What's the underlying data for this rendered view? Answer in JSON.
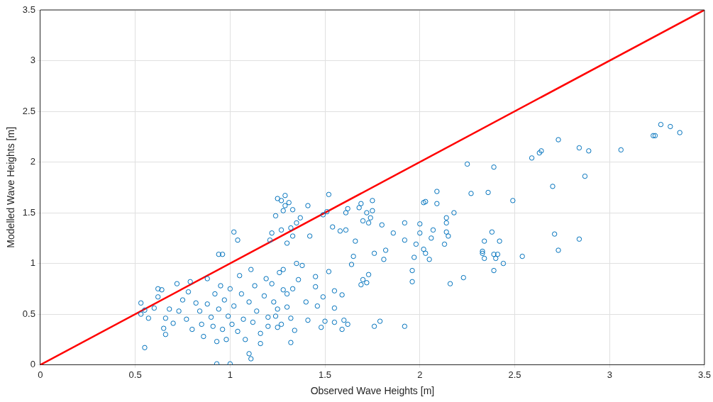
{
  "chart_data": {
    "type": "scatter",
    "xlabel": "Observed Wave Heights [m]",
    "ylabel": "Modelled Wave Heights [m]",
    "xlim": [
      0,
      3.5
    ],
    "ylim": [
      0,
      3.5
    ],
    "xticks": [
      0,
      0.5,
      1,
      1.5,
      2,
      2.5,
      3,
      3.5
    ],
    "yticks": [
      0,
      0.5,
      1,
      1.5,
      2,
      2.5,
      3,
      3.5
    ],
    "grid": true,
    "legend": false,
    "series": [
      {
        "type": "scatter",
        "color": "#0072bd",
        "marker": "circle",
        "x": [
          3.37,
          3.32,
          3.27,
          3.23,
          3.24,
          3.06,
          2.89,
          2.84,
          2.73,
          2.64,
          2.63,
          2.59,
          2.87,
          2.7,
          2.49,
          2.71,
          2.73,
          2.84,
          2.54,
          2.39,
          2.27,
          2.25,
          2.36,
          2.38,
          2.34,
          2.33,
          2.33,
          2.34,
          2.39,
          2.41,
          2.42,
          2.44,
          2.4,
          2.39,
          2.23,
          2.16,
          2.18,
          2.14,
          2.14,
          2.14,
          2.15,
          2.13,
          2.09,
          2.09,
          2.07,
          2.06,
          2.05,
          2.03,
          2.02,
          2,
          2,
          2.02,
          2.03,
          1.98,
          1.97,
          1.96,
          1.96,
          1.92,
          1.92,
          1.92,
          1.86,
          1.82,
          1.81,
          1.8,
          1.79,
          1.76,
          1.76,
          1.75,
          1.75,
          1.74,
          1.73,
          1.72,
          1.73,
          1.72,
          1.7,
          1.69,
          1.7,
          1.68,
          1.69,
          1.66,
          1.65,
          1.64,
          1.62,
          1.61,
          1.61,
          1.58,
          1.59,
          1.6,
          1.59,
          1.62,
          1.55,
          1.55,
          1.55,
          1.52,
          1.51,
          1.49,
          1.54,
          1.52,
          1.49,
          1.5,
          1.48,
          1.46,
          1.45,
          1.45,
          1.42,
          1.41,
          1.41,
          1.4,
          1.37,
          1.35,
          1.33,
          1.32,
          1.31,
          1.29,
          1.29,
          1.28,
          1.27,
          1.25,
          1.24,
          1.22,
          1.21,
          1.27,
          1.3,
          1.33,
          1.35,
          1.38,
          1.36,
          1.33,
          1.28,
          1.3,
          1.25,
          1.27,
          1.32,
          1.25,
          1.2,
          1.16,
          1.11,
          1.1,
          1,
          0.93,
          0.55,
          1.04,
          1.02,
          0.96,
          0.94,
          0.53,
          0.53,
          0.55,
          0.57,
          0.6,
          0.62,
          0.62,
          0.64,
          0.65,
          0.66,
          0.66,
          0.68,
          0.7,
          0.72,
          0.73,
          0.75,
          0.77,
          0.78,
          0.79,
          0.8,
          0.82,
          0.84,
          0.85,
          0.86,
          0.88,
          0.88,
          0.9,
          0.91,
          0.92,
          0.93,
          0.94,
          0.95,
          0.96,
          0.97,
          0.98,
          0.99,
          1,
          1.01,
          1.02,
          1.04,
          1.05,
          1.06,
          1.07,
          1.08,
          1.1,
          1.11,
          1.12,
          1.13,
          1.14,
          1.16,
          1.18,
          1.19,
          1.2,
          1.22,
          1.23,
          1.24,
          1.26,
          1.28,
          1.3,
          1.32,
          1.34
        ],
        "values": [
          2.29,
          2.35,
          2.37,
          2.26,
          2.26,
          2.12,
          2.11,
          2.14,
          2.22,
          2.11,
          2.09,
          2.04,
          1.86,
          1.76,
          1.62,
          1.29,
          1.13,
          1.24,
          1.07,
          1.95,
          1.69,
          1.98,
          1.7,
          1.31,
          1.22,
          1.12,
          1.1,
          1.05,
          1.09,
          1.09,
          1.22,
          1,
          1.05,
          0.93,
          0.86,
          0.8,
          1.5,
          1.45,
          1.4,
          1.31,
          1.27,
          1.19,
          1.71,
          1.59,
          1.33,
          1.25,
          1.04,
          1.61,
          1.6,
          1.39,
          1.3,
          1.14,
          1.1,
          1.19,
          1.06,
          0.93,
          0.82,
          1.4,
          1.23,
          0.38,
          1.3,
          1.13,
          1.04,
          1.38,
          0.43,
          0.38,
          1.1,
          1.62,
          1.52,
          1.45,
          1.4,
          1.5,
          0.89,
          0.81,
          0.84,
          1.59,
          1.42,
          1.55,
          0.79,
          1.22,
          1.07,
          0.99,
          1.54,
          1.5,
          1.33,
          1.32,
          0.69,
          0.44,
          0.35,
          0.4,
          0.73,
          0.56,
          0.42,
          1.68,
          1.51,
          1.48,
          1.36,
          0.92,
          0.67,
          0.43,
          0.37,
          0.58,
          0.87,
          0.77,
          1.27,
          1.57,
          0.44,
          0.62,
          1.45,
          1.4,
          1.53,
          1.35,
          1.6,
          1.67,
          1.57,
          1.52,
          1.33,
          1.64,
          1.47,
          1.3,
          1.23,
          1.62,
          1.2,
          1.27,
          1,
          0.98,
          0.84,
          0.75,
          0.94,
          0.7,
          0.55,
          0.4,
          0.22,
          0.37,
          0.47,
          0.21,
          0.06,
          0.11,
          0.01,
          0.01,
          0.17,
          1.23,
          1.31,
          1.09,
          1.09,
          0.61,
          0.5,
          0.54,
          0.46,
          0.56,
          0.67,
          0.75,
          0.74,
          0.36,
          0.3,
          0.46,
          0.55,
          0.41,
          0.8,
          0.53,
          0.64,
          0.45,
          0.72,
          0.82,
          0.35,
          0.61,
          0.53,
          0.4,
          0.28,
          0.85,
          0.6,
          0.47,
          0.38,
          0.7,
          0.23,
          0.55,
          0.78,
          0.35,
          0.64,
          0.25,
          0.48,
          0.75,
          0.4,
          0.58,
          0.33,
          0.88,
          0.7,
          0.45,
          0.25,
          0.62,
          0.94,
          0.42,
          0.78,
          0.53,
          0.31,
          0.68,
          0.85,
          0.38,
          0.8,
          0.62,
          0.48,
          0.91,
          0.74,
          0.57,
          0.46,
          0.34
        ]
      },
      {
        "type": "line",
        "color": "#ff0000",
        "marker": "none",
        "line_style": "solid",
        "x": [
          0,
          3.5
        ],
        "values": [
          0,
          3.5
        ]
      }
    ]
  }
}
